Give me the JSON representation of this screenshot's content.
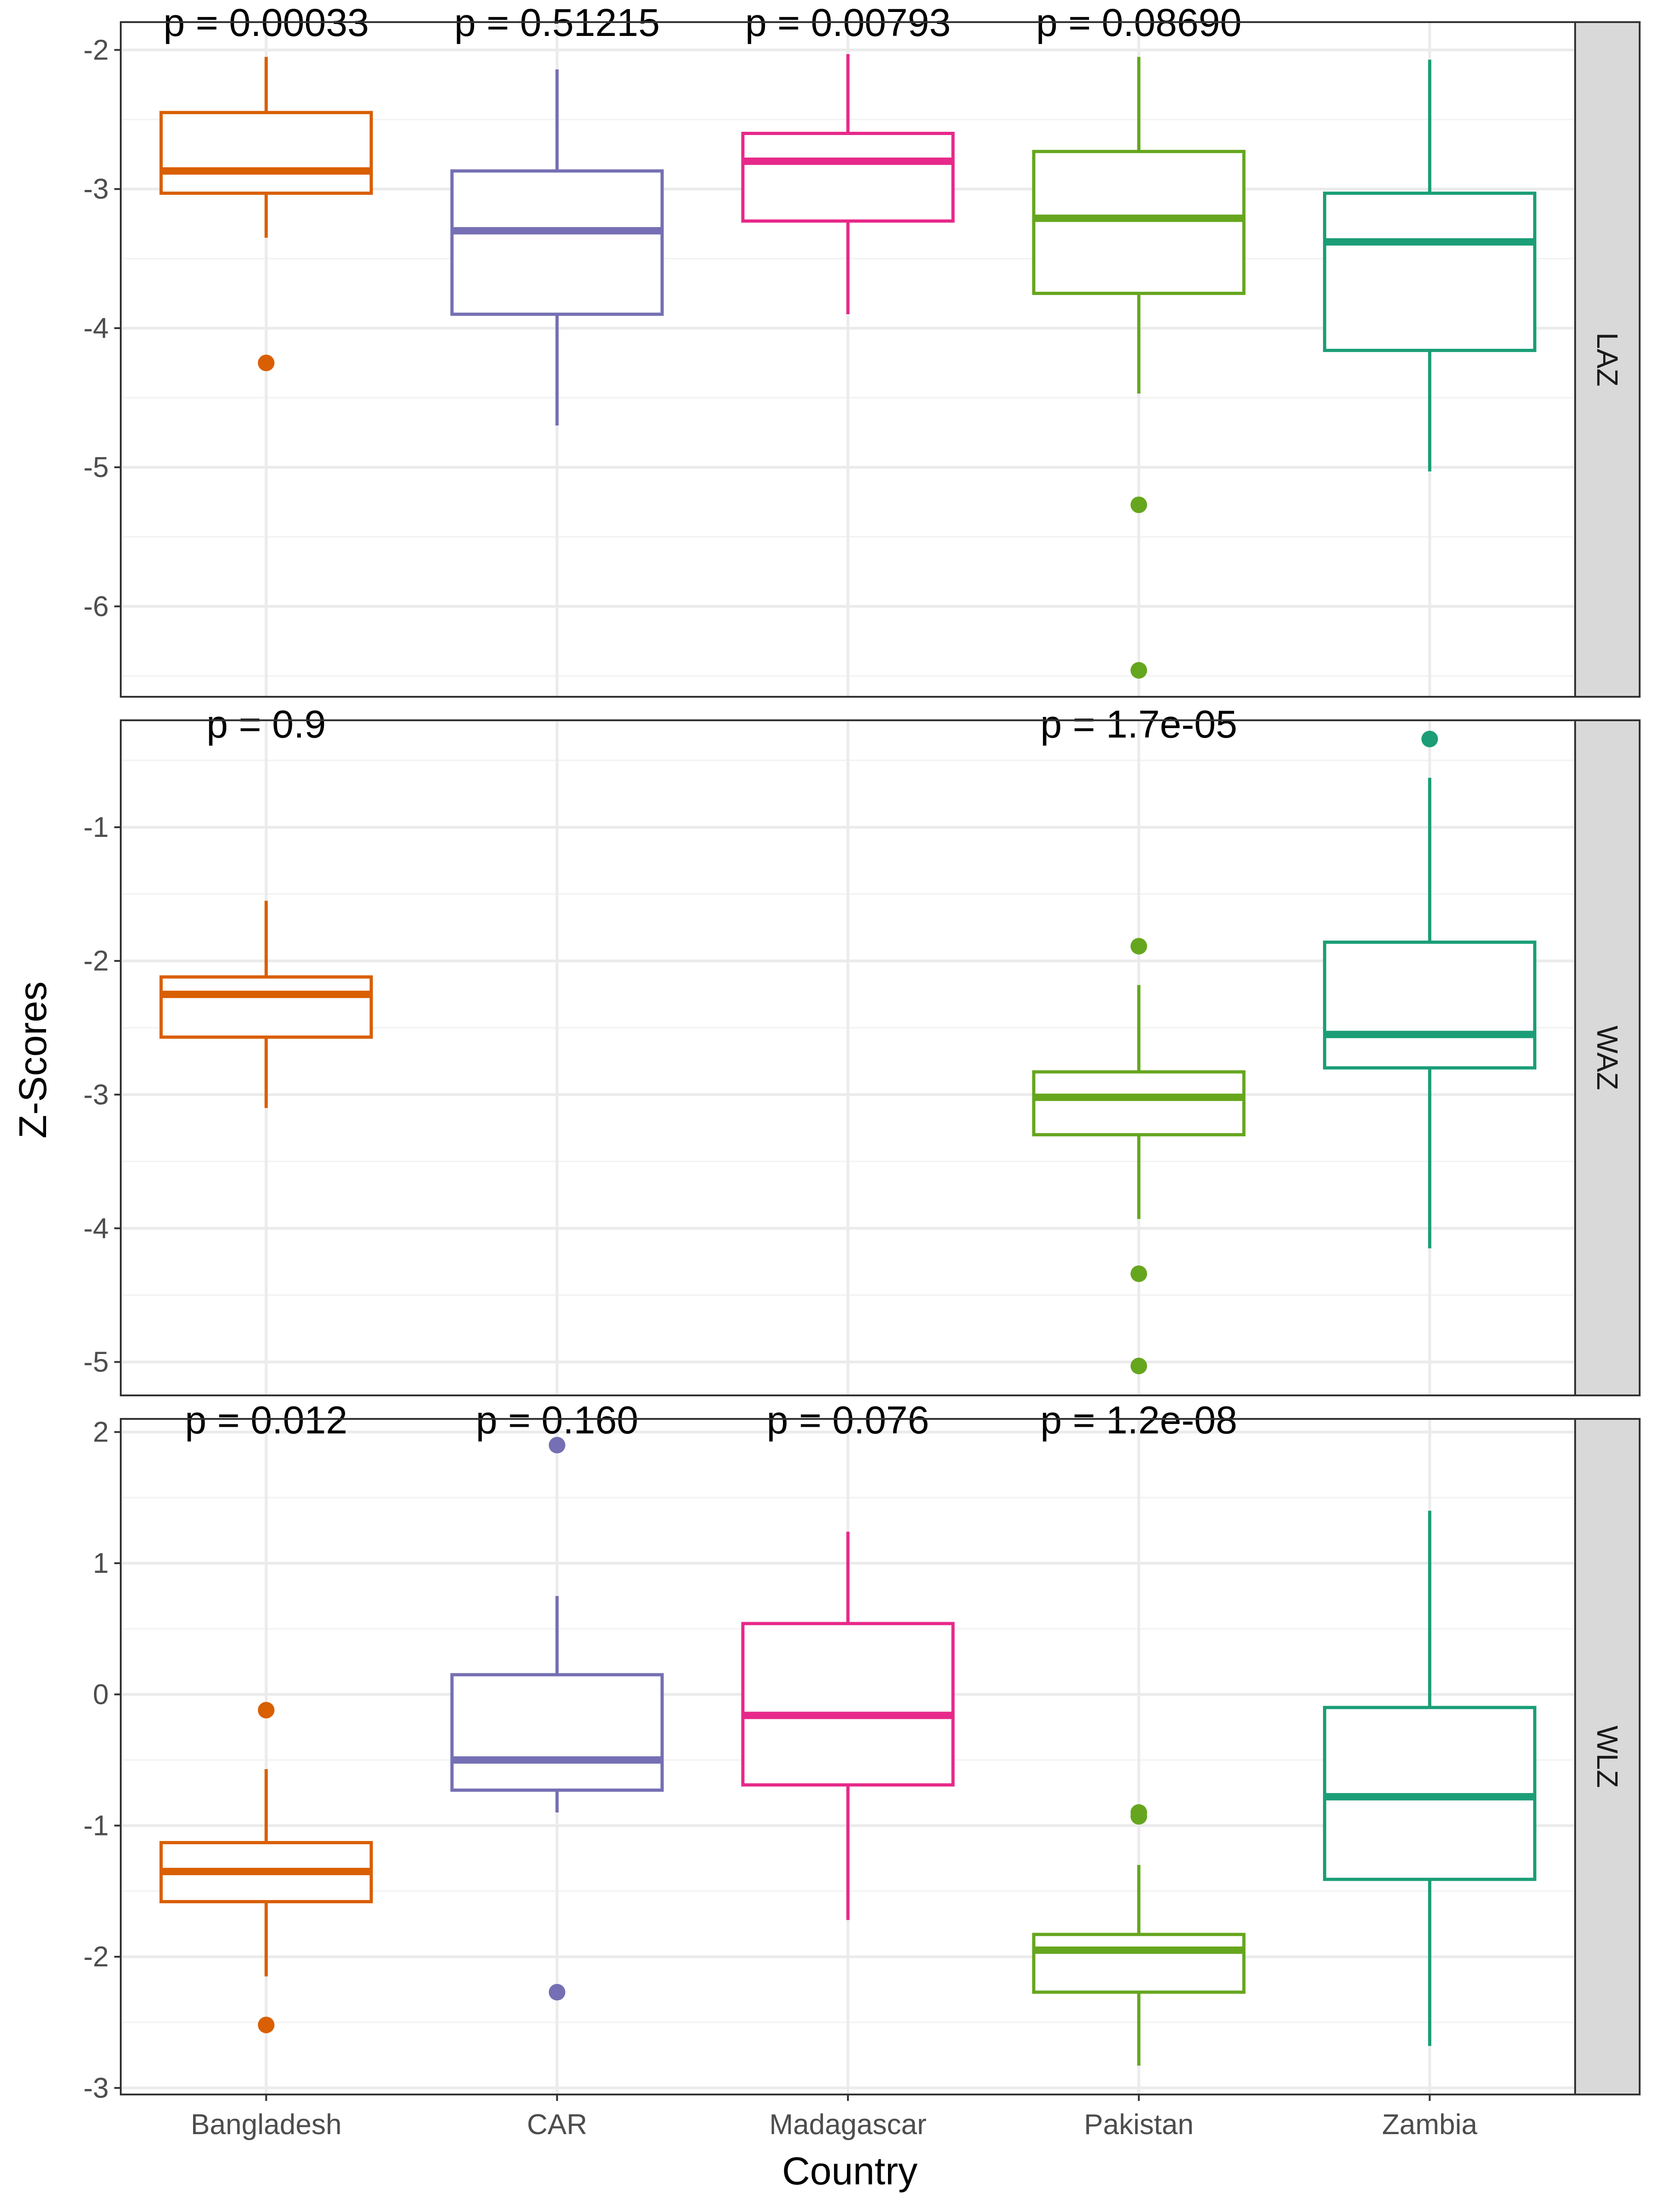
{
  "chart_data": {
    "type": "boxplot",
    "xlabel": "Country",
    "ylabel": "Z-Scores",
    "categories": [
      "Bangladesh",
      "CAR",
      "Madagascar",
      "Pakistan",
      "Zambia"
    ],
    "colors": {
      "Bangladesh": "#D95F02",
      "CAR": "#7570B3",
      "Madagascar": "#E7298A",
      "Pakistan": "#66A61E",
      "Zambia": "#1B9E77"
    },
    "grid": true,
    "facets": [
      {
        "label": "LAZ",
        "ylim": [
          -6.65,
          -1.8
        ],
        "yticks": [
          -6,
          -5,
          -4,
          -3,
          -2
        ],
        "ytick_labels": [
          "-6",
          "-5",
          "-4",
          "-3",
          "-2"
        ],
        "boxes": [
          {
            "category": "Bangladesh",
            "whisker_low": -3.35,
            "q1": -3.03,
            "median": -2.87,
            "q3": -2.45,
            "whisker_high": -2.05,
            "outliers": [
              -4.25
            ]
          },
          {
            "category": "CAR",
            "whisker_low": -4.7,
            "q1": -3.9,
            "median": -3.3,
            "q3": -2.87,
            "whisker_high": -2.14,
            "outliers": []
          },
          {
            "category": "Madagascar",
            "whisker_low": -3.9,
            "q1": -3.23,
            "median": -2.8,
            "q3": -2.6,
            "whisker_high": -2.03,
            "outliers": []
          },
          {
            "category": "Pakistan",
            "whisker_low": -4.47,
            "q1": -3.75,
            "median": -3.21,
            "q3": -2.73,
            "whisker_high": -2.05,
            "outliers": [
              -5.27,
              -6.46
            ]
          },
          {
            "category": "Zambia",
            "whisker_low": -5.03,
            "q1": -4.16,
            "median": -3.38,
            "q3": -3.03,
            "whisker_high": -2.07,
            "outliers": []
          }
        ],
        "pvalues": [
          {
            "category": "Bangladesh",
            "text": "p = 0.00033"
          },
          {
            "category": "CAR",
            "text": "p = 0.51215"
          },
          {
            "category": "Madagascar",
            "text": "p = 0.00793"
          },
          {
            "category": "Pakistan",
            "text": "p = 0.08690"
          }
        ],
        "pvalue_y": -1.9
      },
      {
        "label": "WAZ",
        "ylim": [
          -5.25,
          -0.2
        ],
        "yticks": [
          -5,
          -4,
          -3,
          -2,
          -1
        ],
        "ytick_labels": [
          "-5",
          "-4",
          "-3",
          "-2",
          "-1"
        ],
        "boxes": [
          {
            "category": "Bangladesh",
            "whisker_low": -3.1,
            "q1": -2.57,
            "median": -2.25,
            "q3": -2.12,
            "whisker_high": -1.55,
            "outliers": []
          },
          {
            "category": "Pakistan",
            "whisker_low": -3.93,
            "q1": -3.3,
            "median": -3.02,
            "q3": -2.83,
            "whisker_high": -2.18,
            "outliers": [
              -1.89,
              -4.34,
              -5.03
            ]
          },
          {
            "category": "Zambia",
            "whisker_low": -4.15,
            "q1": -2.8,
            "median": -2.55,
            "q3": -1.86,
            "whisker_high": -0.63,
            "outliers": [
              -0.34
            ]
          }
        ],
        "pvalues": [
          {
            "category": "Bangladesh",
            "text": "p = 0.9"
          },
          {
            "category": "Pakistan",
            "text": "p = 1.7e-05"
          }
        ],
        "pvalue_y": -0.33
      },
      {
        "label": "WLZ",
        "ylim": [
          -3.05,
          2.1
        ],
        "yticks": [
          -3,
          -2,
          -1,
          0,
          1,
          2
        ],
        "ytick_labels": [
          "-3",
          "-2",
          "-1",
          "0",
          "1",
          "2"
        ],
        "boxes": [
          {
            "category": "Bangladesh",
            "whisker_low": -2.15,
            "q1": -1.58,
            "median": -1.35,
            "q3": -1.13,
            "whisker_high": -0.57,
            "outliers": [
              -0.12,
              -2.52
            ]
          },
          {
            "category": "CAR",
            "whisker_low": -0.9,
            "q1": -0.73,
            "median": -0.5,
            "q3": 0.15,
            "whisker_high": 0.75,
            "outliers": [
              1.9,
              -2.27
            ]
          },
          {
            "category": "Madagascar",
            "whisker_low": -1.72,
            "q1": -0.69,
            "median": -0.16,
            "q3": 0.54,
            "whisker_high": 1.24,
            "outliers": []
          },
          {
            "category": "Pakistan",
            "whisker_low": -2.83,
            "q1": -2.27,
            "median": -1.95,
            "q3": -1.83,
            "whisker_high": -1.3,
            "outliers": [
              -0.9,
              -0.93
            ]
          },
          {
            "category": "Zambia",
            "whisker_low": -2.68,
            "q1": -1.41,
            "median": -0.78,
            "q3": -0.1,
            "whisker_high": 1.4,
            "outliers": []
          }
        ],
        "pvalues": [
          {
            "category": "Bangladesh",
            "text": "p = 0.012"
          },
          {
            "category": "CAR",
            "text": "p = 0.160"
          },
          {
            "category": "Madagascar",
            "text": "p = 0.076"
          },
          {
            "category": "Pakistan",
            "text": "p = 1.2e-08"
          }
        ],
        "pvalue_y": 1.99
      }
    ]
  }
}
